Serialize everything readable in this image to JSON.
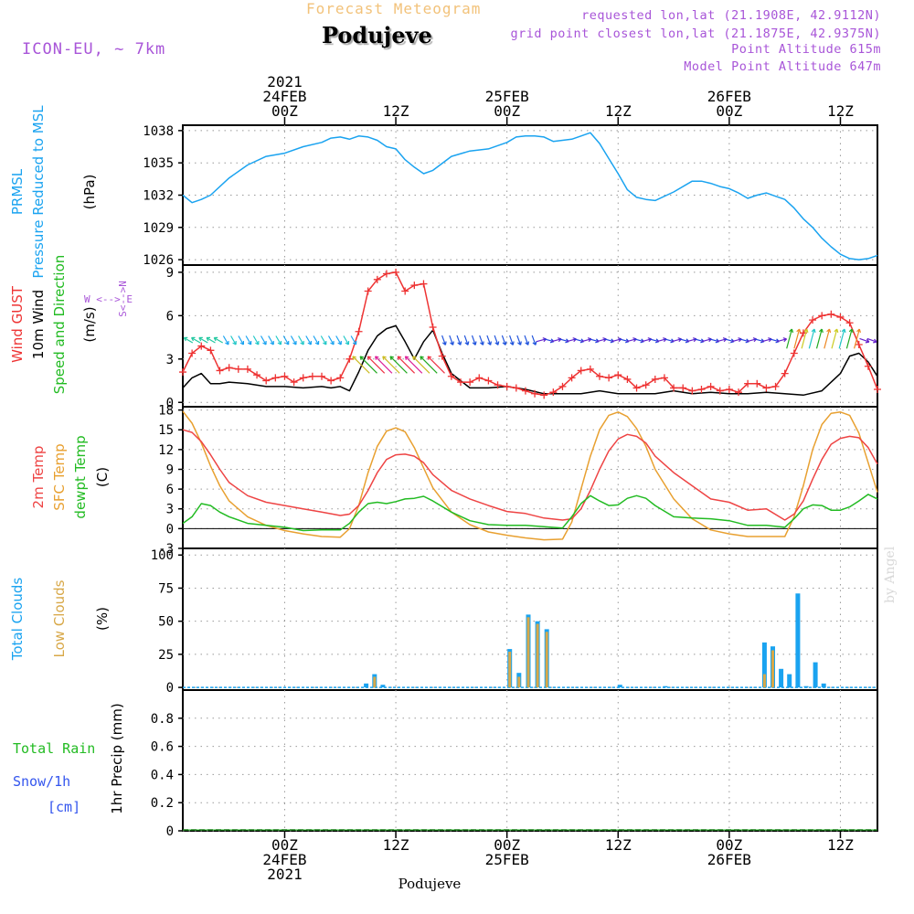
{
  "header": {
    "title": "Forecast Meteogram",
    "location": "Podujeve",
    "model": "ICON-EU, ~ 7km",
    "requested": "requested lon,lat (21.1908E, 42.9112N)",
    "gridpoint": "grid point closest lon,lat (21.1875E, 42.9375N)",
    "point_alt": "Point Altitude 615m",
    "model_alt": "Model Point Altitude 647m",
    "credit": "by Angel",
    "footer_location": "Podujeve"
  },
  "colors": {
    "pressure": "#1aa3f0",
    "gust": "#ee3333",
    "wind": "#000000",
    "temp2m": "#ee4444",
    "sfctemp": "#e8a030",
    "dewpt": "#22bb22",
    "total_clouds": "#1aa3f0",
    "low_clouds": "#d8a848",
    "rain": "#22bb22",
    "snow": "#3355ee",
    "label_purple": "#a855d8"
  },
  "time_axis": {
    "top_ticks": [
      {
        "t": 0,
        "lines": [
          "2021",
          "24FEB",
          "00Z"
        ]
      },
      {
        "t": 12,
        "lines": [
          "12Z"
        ]
      },
      {
        "t": 24,
        "lines": [
          "25FEB",
          "00Z"
        ]
      },
      {
        "t": 36,
        "lines": [
          "12Z"
        ]
      },
      {
        "t": 48,
        "lines": [
          "26FEB",
          "00Z"
        ]
      },
      {
        "t": 60,
        "lines": [
          "12Z"
        ]
      }
    ],
    "bottom_ticks": [
      {
        "t": 0,
        "lines": [
          "00Z",
          "24FEB",
          "2021"
        ]
      },
      {
        "t": 12,
        "lines": [
          "12Z"
        ]
      },
      {
        "t": 24,
        "lines": [
          "00Z",
          "25FEB"
        ]
      },
      {
        "t": 36,
        "lines": [
          "12Z"
        ]
      },
      {
        "t": 48,
        "lines": [
          "00Z",
          "26FEB"
        ]
      },
      {
        "t": 60,
        "lines": [
          "12Z"
        ]
      }
    ],
    "unit": "hours since 24FEB 00Z"
  },
  "labels": {
    "p1": [
      "PRMSL",
      "Pressure Reduced to MSL",
      "(hPa)"
    ],
    "p2": [
      "Wind GUST",
      "10m Wind",
      "Speed and Direction",
      "(m/s)"
    ],
    "p2_compass": {
      "w": "W",
      "e": "E",
      "n": "N",
      "s": "S"
    },
    "p3": [
      "2m Temp",
      "SFC Temp",
      "dewpt Temp",
      "(C)"
    ],
    "p4": [
      "Total Clouds",
      "Low Clouds",
      "(%)"
    ],
    "p5": [
      "Total  Rain",
      "Snow/1h",
      "[cm]",
      "1hr Precip (mm)"
    ]
  },
  "chart_data": [
    {
      "type": "line",
      "title": "PRMSL",
      "ylabel": "Pressure Reduced to MSL (hPa)",
      "ylim": [
        1025.5,
        1038.5
      ],
      "yticks": [
        1026,
        1029,
        1032,
        1035,
        1038
      ],
      "grid": true,
      "series": [
        {
          "name": "PRMSL",
          "x": [
            -11,
            -10,
            -9,
            -8,
            -6,
            -4,
            -2,
            0,
            2,
            4,
            5,
            6,
            7,
            8,
            9,
            10,
            11,
            12,
            13,
            14,
            15,
            16,
            18,
            20,
            22,
            24,
            25,
            26,
            27,
            28,
            29,
            30,
            31,
            32,
            33,
            34,
            35,
            36,
            37,
            38,
            39,
            40,
            42,
            44,
            45,
            46,
            47,
            48,
            49,
            50,
            51,
            52,
            53,
            54,
            55,
            56,
            57,
            58,
            59,
            60,
            61,
            62,
            63,
            64
          ],
          "y": [
            1032.0,
            1031.3,
            1031.6,
            1032.0,
            1033.6,
            1034.8,
            1035.6,
            1035.9,
            1036.5,
            1036.9,
            1037.3,
            1037.4,
            1037.2,
            1037.5,
            1037.4,
            1037.1,
            1036.5,
            1036.3,
            1035.3,
            1034.6,
            1034.0,
            1034.3,
            1035.6,
            1036.1,
            1036.3,
            1036.9,
            1037.4,
            1037.5,
            1037.5,
            1037.4,
            1037.0,
            1037.1,
            1037.2,
            1037.5,
            1037.8,
            1036.8,
            1035.4,
            1034.0,
            1032.5,
            1031.8,
            1031.6,
            1031.5,
            1032.3,
            1033.3,
            1033.3,
            1033.1,
            1032.8,
            1032.6,
            1032.2,
            1031.7,
            1032.0,
            1032.2,
            1031.9,
            1031.6,
            1030.8,
            1029.8,
            1029.0,
            1028.0,
            1027.2,
            1026.5,
            1026.1,
            1026.0,
            1026.1,
            1026.4
          ]
        }
      ]
    },
    {
      "type": "line",
      "title": "Wind GUST / 10m Wind",
      "ylabel": "(m/s)",
      "ylim": [
        -0.3,
        9.5
      ],
      "yticks": [
        0,
        3,
        6,
        9
      ],
      "grid": true,
      "series": [
        {
          "name": "Wind GUST",
          "x": [
            -11,
            -10,
            -9,
            -8,
            -7,
            -6,
            -5,
            -4,
            -3,
            -2,
            -1,
            0,
            1,
            2,
            3,
            4,
            5,
            6,
            7,
            8,
            9,
            10,
            11,
            12,
            13,
            14,
            15,
            16,
            17,
            18,
            19,
            20,
            21,
            22,
            23,
            24,
            25,
            26,
            27,
            28,
            29,
            30,
            31,
            32,
            33,
            34,
            35,
            36,
            37,
            38,
            39,
            40,
            41,
            42,
            43,
            44,
            45,
            46,
            47,
            48,
            49,
            50,
            51,
            52,
            53,
            54,
            55,
            56,
            57,
            58,
            59,
            60,
            61,
            62,
            63,
            64
          ],
          "y": [
            2.1,
            3.4,
            3.9,
            3.6,
            2.2,
            2.4,
            2.3,
            2.3,
            1.9,
            1.5,
            1.7,
            1.8,
            1.4,
            1.7,
            1.8,
            1.8,
            1.5,
            1.7,
            3.0,
            4.9,
            7.7,
            8.5,
            8.9,
            9.0,
            7.7,
            8.1,
            8.2,
            5.2,
            3.2,
            1.8,
            1.4,
            1.4,
            1.7,
            1.5,
            1.2,
            1.1,
            1.0,
            0.8,
            0.6,
            0.5,
            0.7,
            1.1,
            1.7,
            2.2,
            2.3,
            1.8,
            1.7,
            1.9,
            1.6,
            1.0,
            1.2,
            1.6,
            1.7,
            1.0,
            1.0,
            0.8,
            0.9,
            1.1,
            0.8,
            0.9,
            0.7,
            1.3,
            1.3,
            1.0,
            1.1,
            2.0,
            3.4,
            4.8,
            5.7,
            6.0,
            6.1,
            5.9,
            5.5,
            4.0,
            2.5,
            0.9
          ]
        },
        {
          "name": "10m Wind",
          "x": [
            -11,
            -10,
            -9,
            -8,
            -7,
            -6,
            -4,
            -2,
            0,
            2,
            4,
            5,
            6,
            7,
            8,
            9,
            10,
            11,
            12,
            13,
            14,
            15,
            16,
            17,
            18,
            20,
            22,
            24,
            26,
            28,
            30,
            32,
            34,
            36,
            38,
            40,
            42,
            44,
            46,
            48,
            50,
            52,
            54,
            56,
            58,
            60,
            61,
            62,
            63,
            64
          ],
          "y": [
            1.0,
            1.7,
            2.0,
            1.3,
            1.3,
            1.4,
            1.3,
            1.1,
            1.1,
            1.0,
            1.1,
            1.0,
            1.1,
            0.8,
            2.1,
            3.6,
            4.6,
            5.1,
            5.3,
            4.2,
            3.0,
            4.2,
            5.0,
            3.4,
            2.0,
            1.0,
            1.0,
            1.1,
            0.9,
            0.6,
            0.6,
            0.6,
            0.8,
            0.6,
            0.6,
            0.6,
            0.8,
            0.6,
            0.7,
            0.6,
            0.6,
            0.7,
            0.6,
            0.5,
            0.8,
            2.0,
            3.2,
            3.4,
            2.8,
            1.8
          ]
        }
      ],
      "wind_arrows": {
        "count": 92,
        "direction_legend": "W <--> E, S <--> N"
      }
    },
    {
      "type": "line",
      "title": "Temperatures",
      "ylabel": "(C)",
      "ylim": [
        -3,
        18.5
      ],
      "yticks": [
        -3,
        0,
        3,
        6,
        9,
        12,
        15,
        18
      ],
      "grid": true,
      "series": [
        {
          "name": "2m Temp",
          "x": [
            -11,
            -10,
            -9,
            -8,
            -7,
            -6,
            -4,
            -2,
            0,
            2,
            4,
            6,
            7,
            8,
            9,
            10,
            11,
            12,
            13,
            14,
            15,
            16,
            18,
            20,
            22,
            24,
            26,
            28,
            30,
            31,
            32,
            33,
            34,
            35,
            36,
            37,
            38,
            39,
            40,
            42,
            44,
            46,
            48,
            50,
            52,
            54,
            55,
            56,
            57,
            58,
            59,
            60,
            61,
            62,
            63,
            64
          ],
          "y": [
            15.0,
            14.6,
            13.2,
            11.2,
            9.0,
            7.0,
            5.0,
            4.0,
            3.5,
            3.0,
            2.5,
            2.0,
            2.2,
            3.5,
            5.8,
            8.5,
            10.5,
            11.2,
            11.3,
            11.0,
            10.0,
            8.2,
            5.8,
            4.5,
            3.5,
            2.6,
            2.3,
            1.6,
            1.3,
            1.5,
            3.0,
            5.8,
            9.0,
            11.8,
            13.6,
            14.3,
            14.0,
            13.0,
            11.0,
            8.5,
            6.5,
            4.5,
            4.0,
            2.8,
            3.0,
            1.3,
            2.2,
            4.2,
            7.5,
            10.5,
            12.8,
            13.7,
            14.0,
            13.8,
            12.3,
            9.8
          ]
        },
        {
          "name": "SFC Temp",
          "x": [
            -11,
            -10,
            -9,
            -8,
            -7,
            -6,
            -4,
            -2,
            0,
            2,
            4,
            6,
            7,
            8,
            9,
            10,
            11,
            12,
            13,
            14,
            15,
            16,
            18,
            20,
            22,
            24,
            26,
            28,
            30,
            31,
            32,
            33,
            34,
            35,
            36,
            37,
            38,
            39,
            40,
            42,
            44,
            46,
            48,
            50,
            52,
            54,
            55,
            56,
            57,
            58,
            59,
            60,
            61,
            62,
            63,
            64
          ],
          "y": [
            17.8,
            16.0,
            13.0,
            9.5,
            6.5,
            4.2,
            1.8,
            0.5,
            -0.3,
            -0.8,
            -1.2,
            -1.3,
            0.0,
            3.5,
            8.5,
            12.5,
            14.8,
            15.3,
            14.7,
            12.3,
            9.2,
            6.2,
            2.5,
            0.6,
            -0.5,
            -1.0,
            -1.4,
            -1.7,
            -1.6,
            1.0,
            6.0,
            11.0,
            15.0,
            17.2,
            17.7,
            17.0,
            15.2,
            12.5,
            9.0,
            4.5,
            1.5,
            -0.2,
            -0.8,
            -1.2,
            -1.2,
            -1.2,
            1.8,
            6.5,
            12.0,
            15.8,
            17.5,
            17.7,
            17.2,
            14.5,
            10.0,
            5.5
          ]
        },
        {
          "name": "dewpt Temp",
          "x": [
            -11,
            -10,
            -9,
            -8,
            -7,
            -6,
            -4,
            -2,
            0,
            2,
            4,
            6,
            7,
            8,
            9,
            10,
            11,
            12,
            13,
            14,
            15,
            16,
            18,
            20,
            22,
            24,
            26,
            28,
            30,
            31,
            32,
            33,
            34,
            35,
            36,
            37,
            38,
            39,
            40,
            42,
            44,
            46,
            48,
            50,
            52,
            54,
            55,
            56,
            57,
            58,
            59,
            60,
            61,
            62,
            63,
            64
          ],
          "y": [
            0.8,
            1.8,
            3.8,
            3.5,
            2.5,
            1.8,
            0.8,
            0.5,
            0.2,
            -0.3,
            -0.2,
            -0.2,
            0.8,
            2.5,
            3.8,
            4.0,
            3.8,
            4.1,
            4.5,
            4.6,
            4.9,
            4.2,
            2.5,
            1.2,
            0.6,
            0.5,
            0.5,
            0.3,
            0.1,
            1.8,
            3.8,
            5.0,
            4.2,
            3.5,
            3.6,
            4.6,
            5.0,
            4.6,
            3.5,
            1.8,
            1.6,
            1.5,
            1.2,
            0.5,
            0.5,
            0.2,
            1.5,
            3.0,
            3.6,
            3.5,
            2.8,
            2.8,
            3.3,
            4.2,
            5.2,
            4.5
          ]
        }
      ]
    },
    {
      "type": "bar",
      "title": "Clouds",
      "ylabel": "(%)",
      "ylim": [
        -2,
        105
      ],
      "yticks": [
        0,
        25,
        50,
        75,
        100
      ],
      "grid": true,
      "series": [
        {
          "name": "Total Clouds",
          "x": [
            8,
            9,
            10,
            11,
            24,
            25,
            26,
            27,
            28,
            29,
            36,
            41,
            48,
            49,
            50,
            51,
            52,
            53,
            54,
            55,
            56,
            57
          ],
          "y": [
            3,
            10,
            2,
            0,
            0,
            0,
            0,
            0,
            0,
            0,
            2,
            1,
            0,
            0,
            0,
            0,
            0,
            0,
            0,
            0,
            0,
            0
          ]
        },
        {
          "name": "total_clouds_bars",
          "x": [
            8.8,
            9.7,
            10.6,
            24.3,
            25.3,
            26.3,
            27.3,
            28.3,
            36.2,
            41.1,
            51.8,
            52.7,
            53.6,
            54.5,
            55.4,
            56.3,
            57.3,
            58.2,
            59.2
          ],
          "y": [
            3,
            10,
            2,
            29,
            11,
            55,
            50,
            44,
            2,
            1,
            34,
            31,
            14,
            10,
            71,
            1,
            19,
            3,
            0
          ]
        },
        {
          "name": "Low Clouds",
          "x": [
            9.7,
            24.3,
            25.3,
            26.3,
            27.3,
            28.3,
            51.8,
            52.7
          ],
          "y": [
            8,
            27,
            8,
            53,
            48,
            42,
            10,
            28
          ]
        }
      ]
    },
    {
      "type": "line",
      "title": "Precipitation",
      "ylabel": "1hr Precip (mm)",
      "ylim": [
        0,
        1.0
      ],
      "yticks": [
        0,
        0.2,
        0.4,
        0.6,
        0.8
      ],
      "grid": true,
      "series": [
        {
          "name": "Total Rain",
          "x": [
            -11,
            64
          ],
          "y": [
            0,
            0
          ]
        },
        {
          "name": "Snow/1h",
          "x": [
            -11,
            64
          ],
          "y": [
            0,
            0
          ]
        }
      ]
    }
  ]
}
